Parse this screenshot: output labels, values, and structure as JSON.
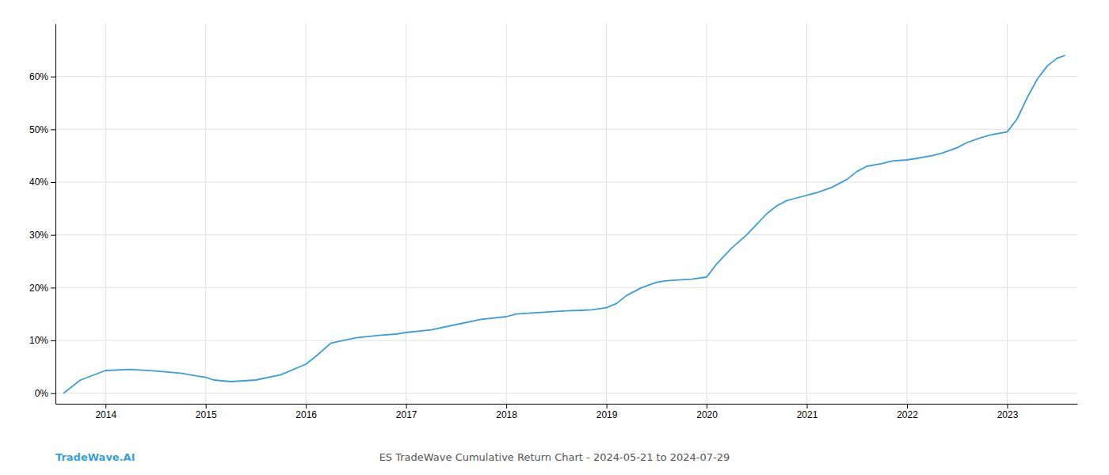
{
  "chart_data": {
    "type": "line",
    "title": "ES TradeWave Cumulative Return Chart - 2024-05-21 to 2024-07-29",
    "annotations": [
      {
        "text": "TradeWave.AI",
        "color": "#3a9fd9"
      }
    ],
    "color": "#3a9fd9",
    "x": [
      2013.58,
      2013.75,
      2014.0,
      2014.25,
      2014.5,
      2014.75,
      2015.0,
      2015.08,
      2015.25,
      2015.5,
      2015.75,
      2016.0,
      2016.1,
      2016.25,
      2016.5,
      2016.75,
      2016.9,
      2017.0,
      2017.25,
      2017.5,
      2017.75,
      2018.0,
      2018.1,
      2018.25,
      2018.5,
      2018.6,
      2018.75,
      2018.85,
      2019.0,
      2019.1,
      2019.2,
      2019.35,
      2019.5,
      2019.6,
      2019.75,
      2019.85,
      2020.0,
      2020.1,
      2020.25,
      2020.4,
      2020.5,
      2020.6,
      2020.7,
      2020.8,
      2020.9,
      2021.0,
      2021.1,
      2021.25,
      2021.4,
      2021.5,
      2021.6,
      2021.75,
      2021.85,
      2022.0,
      2022.1,
      2022.25,
      2022.35,
      2022.5,
      2022.6,
      2022.75,
      2022.85,
      2023.0,
      2023.1,
      2023.2,
      2023.3,
      2023.4,
      2023.5,
      2023.58
    ],
    "values": [
      0.0,
      2.5,
      4.3,
      4.5,
      4.2,
      3.8,
      3.0,
      2.5,
      2.2,
      2.5,
      3.5,
      5.5,
      7.0,
      9.5,
      10.5,
      11.0,
      11.2,
      11.5,
      12.0,
      13.0,
      14.0,
      14.5,
      15.0,
      15.2,
      15.5,
      15.6,
      15.7,
      15.8,
      16.2,
      17.0,
      18.5,
      20.0,
      21.0,
      21.3,
      21.5,
      21.6,
      22.0,
      24.5,
      27.5,
      30.0,
      32.0,
      34.0,
      35.5,
      36.5,
      37.0,
      37.5,
      38.0,
      39.0,
      40.5,
      42.0,
      43.0,
      43.5,
      44.0,
      44.2,
      44.5,
      45.0,
      45.5,
      46.5,
      47.5,
      48.5,
      49.0,
      49.5,
      52.0,
      56.0,
      59.5,
      62.0,
      63.5,
      64.0
    ],
    "xlim": [
      2013.5,
      2023.7
    ],
    "ylim": [
      -2,
      70
    ],
    "xticks": [
      2014,
      2015,
      2016,
      2017,
      2018,
      2019,
      2020,
      2021,
      2022,
      2023
    ],
    "yticks": [
      {
        "value": 0,
        "label": "0%"
      },
      {
        "value": 10,
        "label": "10%"
      },
      {
        "value": 20,
        "label": "20%"
      },
      {
        "value": 30,
        "label": "30%"
      },
      {
        "value": 40,
        "label": "40%"
      },
      {
        "value": 50,
        "label": "50%"
      },
      {
        "value": 60,
        "label": "60%"
      }
    ],
    "grid": true
  }
}
